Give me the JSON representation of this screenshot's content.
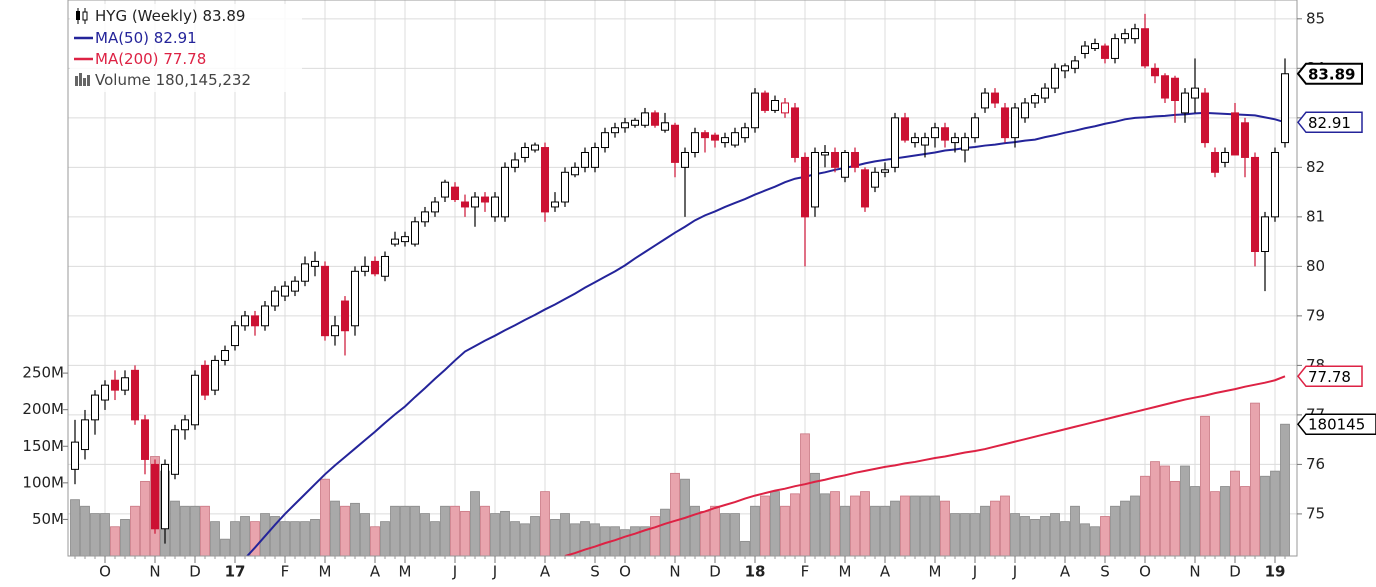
{
  "chart_data": {
    "type": "candlestick",
    "categories": [
      null,
      null,
      null,
      "O",
      null,
      null,
      null,
      null,
      "N",
      null,
      null,
      null,
      "D",
      null,
      null,
      null,
      "17",
      null,
      null,
      null,
      null,
      "F",
      null,
      null,
      null,
      "M",
      null,
      null,
      null,
      null,
      "A",
      null,
      null,
      "M",
      null,
      null,
      null,
      null,
      "J",
      null,
      null,
      null,
      "J",
      null,
      null,
      null,
      null,
      "A",
      null,
      null,
      null,
      null,
      "S",
      null,
      null,
      "O",
      null,
      null,
      null,
      null,
      "N",
      null,
      null,
      null,
      "D",
      null,
      null,
      null,
      "18",
      null,
      null,
      null,
      null,
      "F",
      null,
      null,
      null,
      "M",
      null,
      null,
      null,
      "A",
      null,
      null,
      null,
      null,
      "M",
      null,
      null,
      null,
      "J",
      null,
      null,
      null,
      "J",
      null,
      null,
      null,
      null,
      "A",
      null,
      null,
      null,
      "S",
      null,
      null,
      null,
      "O",
      null,
      null,
      null,
      null,
      "N",
      null,
      null,
      null,
      "D",
      null,
      null,
      null,
      "19",
      null
    ],
    "series": [
      {
        "name": "HYG (Weekly)",
        "type": "candlestick",
        "up_color": "#000000",
        "down_color": "#cc1133",
        "open": [
          75.9,
          76.3,
          76.9,
          77.3,
          77.7,
          77.5,
          77.9,
          76.9,
          76.0,
          74.7,
          75.8,
          76.7,
          76.8,
          78.0,
          77.5,
          78.1,
          78.4,
          78.8,
          79.0,
          78.8,
          79.2,
          79.4,
          79.5,
          79.7,
          80.0,
          80.0,
          78.6,
          79.3,
          78.8,
          79.9,
          80.1,
          79.8,
          80.45,
          80.5,
          80.45,
          80.9,
          81.1,
          81.4,
          81.6,
          81.3,
          81.2,
          81.4,
          81.0,
          81.0,
          82.0,
          82.2,
          82.35,
          82.4,
          81.2,
          81.3,
          81.85,
          82.0,
          82.0,
          82.4,
          82.7,
          82.8,
          82.85,
          82.85,
          83.1,
          82.75,
          82.85,
          82.0,
          82.3,
          82.7,
          82.65,
          82.5,
          82.45,
          82.6,
          82.8,
          83.5,
          83.15,
          83.1,
          83.2,
          82.2,
          81.2,
          82.25,
          82.3,
          81.8,
          82.3,
          81.95,
          81.6,
          81.9,
          82.0,
          83.0,
          82.5,
          82.45,
          82.6,
          82.8,
          82.5,
          82.35,
          82.6,
          83.2,
          83.5,
          83.2,
          82.6,
          83.0,
          83.3,
          83.4,
          83.6,
          83.95,
          84.0,
          84.3,
          84.4,
          84.45,
          84.2,
          84.6,
          84.6,
          84.8,
          84.0,
          83.85,
          83.8,
          83.1,
          83.4,
          83.5,
          82.3,
          82.1,
          83.1,
          82.9,
          82.2,
          80.3,
          81.0,
          82.5
        ],
        "high": [
          76.9,
          77.1,
          77.5,
          77.7,
          77.9,
          77.9,
          78.0,
          77.0,
          76.1,
          76.1,
          76.8,
          77.0,
          77.9,
          78.1,
          78.2,
          78.4,
          78.9,
          79.1,
          79.1,
          79.3,
          79.6,
          79.7,
          79.8,
          80.2,
          80.3,
          80.1,
          79.0,
          79.4,
          80.0,
          80.2,
          80.2,
          80.3,
          80.7,
          80.7,
          81.0,
          81.2,
          81.4,
          81.75,
          81.7,
          81.45,
          81.5,
          81.5,
          81.5,
          82.1,
          82.3,
          82.5,
          82.5,
          82.5,
          81.5,
          82.0,
          82.1,
          82.4,
          82.5,
          82.8,
          82.9,
          83.0,
          83.0,
          83.2,
          83.15,
          83.1,
          82.9,
          82.4,
          82.8,
          82.75,
          82.7,
          82.7,
          82.8,
          82.9,
          83.6,
          83.55,
          83.45,
          83.4,
          83.3,
          82.3,
          82.4,
          82.45,
          82.4,
          82.35,
          82.4,
          82.0,
          82.0,
          82.1,
          83.1,
          83.1,
          82.7,
          82.7,
          82.9,
          82.9,
          82.7,
          82.7,
          83.1,
          83.6,
          83.6,
          83.3,
          83.3,
          83.4,
          83.5,
          83.7,
          84.1,
          84.1,
          84.25,
          84.55,
          84.6,
          84.5,
          84.7,
          84.8,
          84.9,
          85.1,
          84.1,
          83.9,
          83.85,
          83.6,
          84.2,
          83.6,
          82.4,
          82.4,
          83.3,
          83.0,
          82.3,
          81.1,
          82.4,
          84.2
        ],
        "low": [
          75.6,
          76.1,
          76.6,
          77.1,
          77.3,
          77.4,
          76.8,
          75.8,
          74.6,
          74.4,
          75.7,
          76.5,
          76.7,
          77.3,
          77.4,
          78.0,
          78.3,
          78.7,
          78.6,
          78.7,
          79.1,
          79.3,
          79.4,
          79.6,
          79.8,
          78.5,
          78.4,
          78.2,
          78.6,
          79.8,
          79.8,
          79.7,
          80.4,
          80.4,
          80.4,
          80.8,
          81.0,
          81.3,
          81.3,
          81.0,
          80.8,
          81.1,
          80.9,
          80.9,
          81.9,
          82.1,
          82.3,
          80.9,
          81.1,
          81.2,
          81.8,
          81.9,
          81.9,
          82.3,
          82.6,
          82.7,
          82.8,
          82.8,
          82.8,
          82.7,
          81.8,
          81.0,
          82.2,
          82.3,
          82.4,
          82.4,
          82.4,
          82.5,
          82.7,
          83.1,
          83.1,
          83.0,
          82.1,
          80.0,
          81.0,
          82.0,
          81.9,
          81.7,
          81.9,
          81.1,
          81.5,
          81.8,
          81.9,
          82.5,
          82.4,
          82.2,
          82.4,
          82.4,
          82.3,
          82.1,
          82.5,
          83.1,
          83.2,
          82.5,
          82.4,
          82.9,
          83.2,
          83.3,
          83.5,
          83.8,
          83.9,
          84.2,
          84.35,
          84.1,
          84.1,
          84.5,
          84.5,
          84.0,
          83.7,
          83.3,
          82.9,
          82.9,
          83.1,
          82.4,
          81.8,
          82.0,
          82.3,
          81.8,
          80.0,
          79.5,
          80.9,
          82.4
        ],
        "close": [
          76.45,
          76.9,
          77.4,
          77.6,
          77.5,
          77.75,
          76.9,
          76.1,
          74.7,
          76.0,
          76.7,
          76.9,
          77.8,
          77.4,
          78.1,
          78.3,
          78.8,
          79.0,
          78.8,
          79.2,
          79.5,
          79.6,
          79.7,
          80.05,
          80.1,
          78.6,
          78.8,
          78.7,
          79.9,
          80.0,
          79.85,
          80.2,
          80.55,
          80.6,
          80.9,
          81.1,
          81.3,
          81.7,
          81.35,
          81.2,
          81.4,
          81.3,
          81.4,
          82.0,
          82.15,
          82.4,
          82.45,
          81.1,
          81.3,
          81.9,
          82.0,
          82.3,
          82.4,
          82.7,
          82.8,
          82.9,
          82.95,
          83.1,
          82.85,
          82.9,
          82.1,
          82.3,
          82.7,
          82.6,
          82.55,
          82.6,
          82.7,
          82.8,
          83.5,
          83.15,
          83.35,
          83.3,
          82.2,
          81.0,
          82.3,
          82.3,
          82.0,
          82.3,
          82.0,
          81.2,
          81.9,
          81.95,
          83.0,
          82.55,
          82.6,
          82.6,
          82.8,
          82.55,
          82.6,
          82.6,
          83.0,
          83.5,
          83.3,
          82.6,
          83.2,
          83.3,
          83.45,
          83.6,
          84.0,
          84.05,
          84.15,
          84.45,
          84.5,
          84.2,
          84.6,
          84.7,
          84.8,
          84.05,
          83.85,
          83.4,
          83.35,
          83.5,
          83.6,
          82.5,
          81.9,
          82.3,
          82.25,
          82.2,
          80.3,
          81.0,
          82.3,
          83.89
        ]
      },
      {
        "name": "MA(50)",
        "type": "line",
        "color": "#24249a",
        "values": [
          null,
          null,
          null,
          null,
          null,
          null,
          null,
          null,
          null,
          null,
          null,
          null,
          null,
          null,
          null,
          null,
          null,
          74.1,
          74.32,
          74.55,
          74.78,
          75.0,
          75.2,
          75.4,
          75.6,
          75.8,
          75.98,
          76.15,
          76.32,
          76.49,
          76.66,
          76.84,
          77.01,
          77.17,
          77.36,
          77.54,
          77.73,
          77.91,
          78.1,
          78.28,
          78.39,
          78.5,
          78.6,
          78.71,
          78.81,
          78.92,
          79.02,
          79.13,
          79.23,
          79.34,
          79.45,
          79.57,
          79.68,
          79.79,
          79.9,
          80.02,
          80.16,
          80.29,
          80.42,
          80.55,
          80.68,
          80.8,
          80.93,
          81.03,
          81.11,
          81.2,
          81.28,
          81.36,
          81.45,
          81.53,
          81.61,
          81.7,
          81.77,
          81.81,
          81.86,
          81.9,
          81.95,
          81.99,
          82.03,
          82.08,
          82.12,
          82.15,
          82.18,
          82.21,
          82.24,
          82.27,
          82.3,
          82.34,
          82.36,
          82.39,
          82.41,
          82.44,
          82.46,
          82.49,
          82.51,
          82.54,
          82.56,
          82.61,
          82.65,
          82.7,
          82.74,
          82.79,
          82.83,
          82.88,
          82.92,
          82.97,
          83.0,
          83.01,
          83.03,
          83.04,
          83.06,
          83.07,
          83.09,
          83.1,
          83.09,
          83.08,
          83.07,
          83.06,
          83.05,
          83.01,
          82.97,
          82.91
        ]
      },
      {
        "name": "MA(200)",
        "type": "line",
        "color": "#dd2244",
        "values": [
          null,
          null,
          null,
          null,
          null,
          null,
          null,
          null,
          null,
          null,
          null,
          null,
          null,
          null,
          null,
          null,
          null,
          null,
          null,
          null,
          null,
          null,
          null,
          null,
          null,
          null,
          null,
          null,
          null,
          null,
          null,
          null,
          null,
          null,
          null,
          null,
          null,
          null,
          null,
          null,
          null,
          null,
          null,
          null,
          null,
          null,
          null,
          null,
          null,
          74.15,
          74.21,
          74.28,
          74.34,
          74.41,
          74.47,
          74.54,
          74.6,
          74.67,
          74.73,
          74.8,
          74.86,
          74.92,
          74.99,
          75.05,
          75.12,
          75.18,
          75.24,
          75.31,
          75.37,
          75.42,
          75.47,
          75.51,
          75.56,
          75.6,
          75.65,
          75.69,
          75.74,
          75.78,
          75.83,
          75.87,
          75.91,
          75.95,
          75.98,
          76.02,
          76.05,
          76.09,
          76.13,
          76.16,
          76.2,
          76.24,
          76.27,
          76.31,
          76.36,
          76.41,
          76.46,
          76.51,
          76.56,
          76.61,
          76.66,
          76.71,
          76.76,
          76.81,
          76.86,
          76.91,
          76.96,
          77.01,
          77.06,
          77.11,
          77.16,
          77.21,
          77.26,
          77.31,
          77.35,
          77.39,
          77.44,
          77.48,
          77.52,
          77.57,
          77.61,
          77.65,
          77.7,
          77.78
        ]
      },
      {
        "name": "Volume",
        "type": "bar",
        "axis": "y2",
        "color": "#a9a9a9",
        "down_color": "#e8a4ad",
        "last_label": "180,145,232",
        "tag_label": "180145",
        "values": [
          77000000,
          68000000,
          58000000,
          58000000,
          40000000,
          50000000,
          68000000,
          102000000,
          136000000,
          116000000,
          75000000,
          68000000,
          68000000,
          68000000,
          47000000,
          23000000,
          47000000,
          54000000,
          47000000,
          58000000,
          54000000,
          47000000,
          47000000,
          47000000,
          50000000,
          105000000,
          75000000,
          68000000,
          72000000,
          58000000,
          40000000,
          47000000,
          68000000,
          68000000,
          68000000,
          58000000,
          47000000,
          68000000,
          68000000,
          61000000,
          88000000,
          68000000,
          58000000,
          61000000,
          47000000,
          44000000,
          54000000,
          88000000,
          50000000,
          58000000,
          44000000,
          47000000,
          44000000,
          40000000,
          40000000,
          36000000,
          40000000,
          40000000,
          54000000,
          64000000,
          113000000,
          105000000,
          68000000,
          61000000,
          68000000,
          58000000,
          58000000,
          20000000,
          68000000,
          82000000,
          88000000,
          68000000,
          85000000,
          167000000,
          113000000,
          85000000,
          88000000,
          68000000,
          82000000,
          88000000,
          68000000,
          68000000,
          75000000,
          82000000,
          82000000,
          82000000,
          82000000,
          75000000,
          58000000,
          58000000,
          58000000,
          68000000,
          75000000,
          82000000,
          58000000,
          54000000,
          50000000,
          54000000,
          58000000,
          47000000,
          68000000,
          44000000,
          40000000,
          54000000,
          68000000,
          75000000,
          82000000,
          109000000,
          129000000,
          123000000,
          102000000,
          123000000,
          95000000,
          191000000,
          88000000,
          95000000,
          116000000,
          95000000,
          209000000,
          109000000,
          116000000,
          180145232
        ]
      }
    ],
    "ylim": [
      74.15,
      85.38
    ],
    "yticks": [
      75,
      76,
      77,
      78,
      79,
      80,
      81,
      82,
      83,
      84,
      85
    ],
    "y2lim": [
      0,
      760000000
    ],
    "y2ticks": [
      {
        "value": 50000000,
        "label": "50M"
      },
      {
        "value": 100000000,
        "label": "100M"
      },
      {
        "value": 150000000,
        "label": "150M"
      },
      {
        "value": 200000000,
        "label": "200M"
      },
      {
        "value": 250000000,
        "label": "250M"
      }
    ],
    "grid": true
  }
}
